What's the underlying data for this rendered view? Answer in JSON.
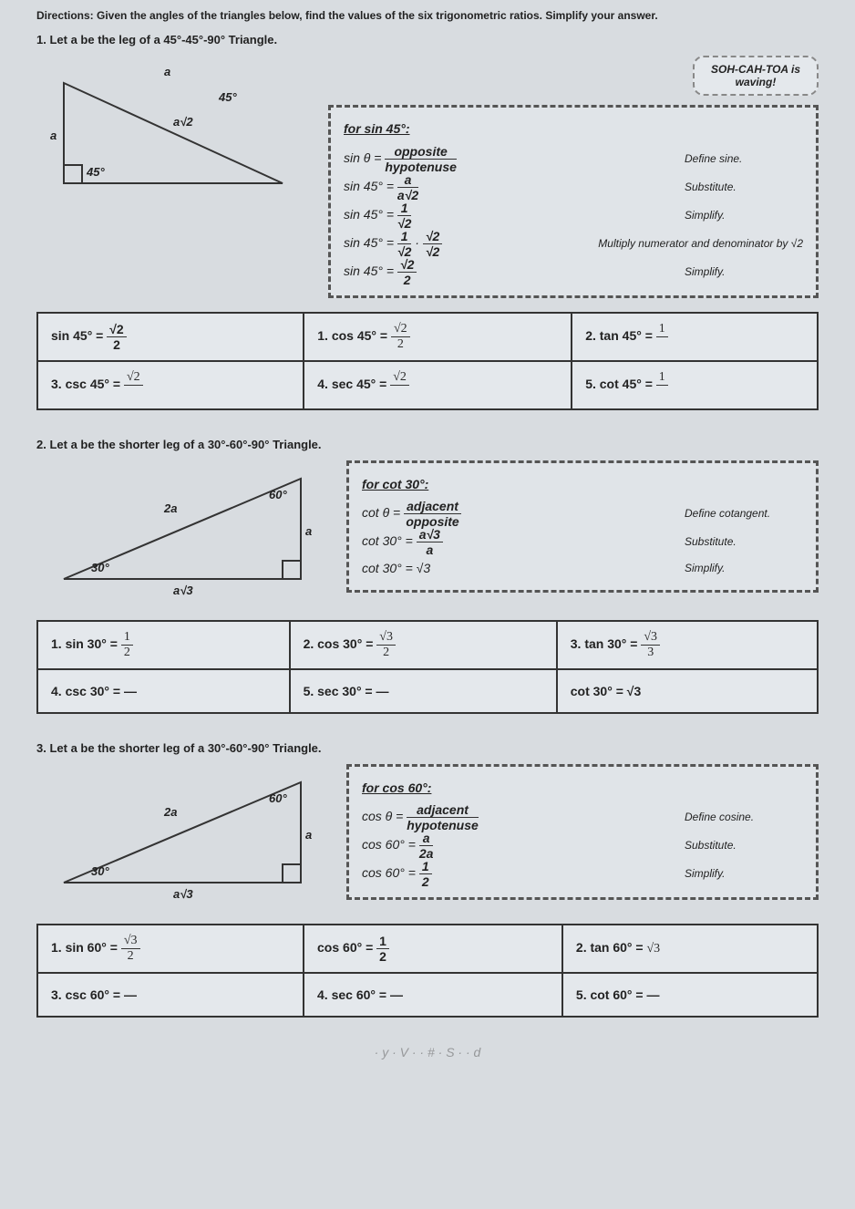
{
  "instructions": "Directions: Given the angles of the triangles below, find the values of the six trigonometric ratios. Simplify your answer.",
  "bubble": {
    "line1": "SOH-CAH-TOA is",
    "line2": "waving!"
  },
  "p1": {
    "title": "1. Let a be the leg of a 45°-45°-90° Triangle.",
    "tri": {
      "a": "a",
      "top": "a",
      "hyp": "a√2",
      "ang1": "45°",
      "ang2": "45°"
    },
    "work": {
      "heading": "for sin 45°:",
      "r1": {
        "eq": "sin θ = <span class='frac'><span class='n'>opposite</span><span class='d'>hypotenuse</span></span>",
        "lbl": "Define sine."
      },
      "r2": {
        "eq": "sin 45° = <span class='frac'><span class='n'>a</span><span class='d'>a√2</span></span>",
        "lbl": "Substitute."
      },
      "r3": {
        "eq": "sin 45° = <span class='frac'><span class='n'>1</span><span class='d'>√2</span></span>",
        "lbl": "Simplify."
      },
      "r4": {
        "eq": "sin 45° = <span class='frac'><span class='n'>1</span><span class='d'>√2</span></span> · <span class='frac'><span class='n'>√2</span><span class='d'>√2</span></span>",
        "lbl": "Multiply numerator and denominator by √2"
      },
      "r5": {
        "eq": "sin 45° = <span class='frac'><span class='n'>√2</span><span class='d'>2</span></span>",
        "lbl": "Simplify."
      }
    },
    "ans": {
      "c1": "sin 45° = <span class='frac'><span class='n'>√2</span><span class='d'>2</span></span>",
      "c2": "1. cos 45° = <span class='hand frac'><span class='n'>√2</span><span class='d'>2</span></span>",
      "c3": "2. tan 45° = <span class='hand frac'><span class='n'>1</span><span class='d'>&nbsp;</span></span>",
      "c4": "3. csc 45° = <span class='hand frac'><span class='n'>√2</span><span class='d'>&nbsp;</span></span>",
      "c5": "4. sec 45° = <span class='hand frac'><span class='n'>√2</span><span class='d'>&nbsp;</span></span>",
      "c6": "5. cot 45° = <span class='hand frac'><span class='n'>1</span><span class='d'>&nbsp;</span></span>"
    }
  },
  "p2": {
    "title": "2. Let a be the shorter leg of a 30°-60°-90° Triangle.",
    "tri": {
      "hyp": "2a",
      "short": "a",
      "long": "a√3",
      "ang1": "30°",
      "ang2": "60°"
    },
    "work": {
      "heading": "for cot 30°:",
      "r1": {
        "eq": "cot θ = <span class='frac'><span class='n'>adjacent</span><span class='d'>opposite</span></span>",
        "lbl": "Define cotangent."
      },
      "r2": {
        "eq": "cot 30° = <span class='frac'><span class='n'>a√3</span><span class='d'>a</span></span>",
        "lbl": "Substitute."
      },
      "r3": {
        "eq": "cot 30° = √3",
        "lbl": "Simplify."
      }
    },
    "ans": {
      "c1": "1. sin 30° = <span class='hand frac'><span class='n'>1</span><span class='d'>2</span></span>",
      "c2": "2. cos 30° = <span class='hand frac'><span class='n'>√3</span><span class='d'>2</span></span>",
      "c3": "3. tan 30° = <span class='hand frac'><span class='n'>√3</span><span class='d'>3</span></span>",
      "c4": "4. csc 30° = —",
      "c5": "5. sec 30° = —",
      "c6": "cot 30° = √3"
    }
  },
  "p3": {
    "title": "3. Let a be the shorter leg of a 30°-60°-90° Triangle.",
    "tri": {
      "hyp": "2a",
      "short": "a",
      "long": "a√3",
      "ang1": "30°",
      "ang2": "60°"
    },
    "work": {
      "heading": "for cos 60°:",
      "r1": {
        "eq": "cos θ = <span class='frac'><span class='n'>adjacent</span><span class='d'>hypotenuse</span></span>",
        "lbl": "Define cosine."
      },
      "r2": {
        "eq": "cos 60° = <span class='frac'><span class='n'>a</span><span class='d'>2a</span></span>",
        "lbl": "Substitute."
      },
      "r3": {
        "eq": "cos 60° = <span class='frac'><span class='n'>1</span><span class='d'>2</span></span>",
        "lbl": "Simplify."
      }
    },
    "ans": {
      "c1": "1. sin 60° = <span class='hand frac'><span class='n'>√3</span><span class='d'>2</span></span>",
      "c2": "cos 60° = <span class='frac'><span class='n'>1</span><span class='d'>2</span></span>",
      "c3": "2. tan 60° = <span class='hand'>√3</span>",
      "c4": "3. csc 60° = —",
      "c5": "4. sec 60° = —",
      "c6": "5. cot 60° = —"
    }
  },
  "footer_scribble": "· y · V · · # · S · · d",
  "colors": {
    "page_bg": "#d8dce0",
    "border": "#333",
    "text": "#222"
  }
}
